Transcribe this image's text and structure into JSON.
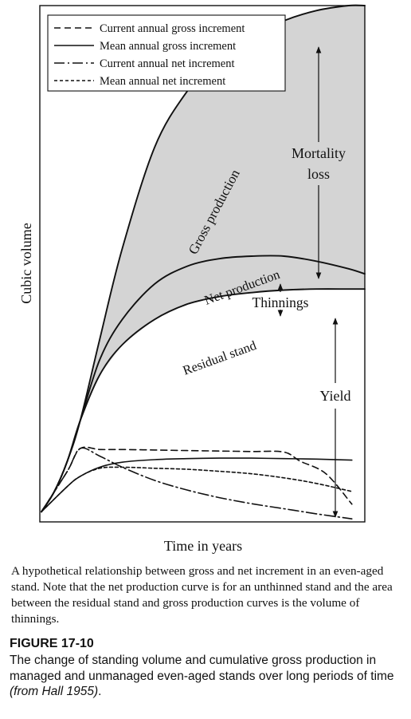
{
  "chart_data": {
    "type": "line",
    "xlabel": "Time in years",
    "ylabel": "Cubic volume",
    "legend": {
      "placement": "top-left",
      "entries": [
        {
          "label": "Current annual gross increment",
          "style": "dashed"
        },
        {
          "label": "Mean annual gross increment",
          "style": "solid"
        },
        {
          "label": "Current annual net increment",
          "style": "dash-dot"
        },
        {
          "label": "Mean annual net increment",
          "style": "dotted"
        }
      ]
    },
    "annotations": {
      "gross_production": "Gross production",
      "net_production": "Net production",
      "residual_stand": "Residual stand",
      "mortality_loss_line1": "Mortality",
      "mortality_loss_line2": "loss",
      "thinnings": "Thinnings",
      "yield": "Yield"
    },
    "series": [
      {
        "name": "Gross production",
        "x": [
          0,
          4,
          8,
          12,
          18,
          25,
          35,
          45,
          55,
          65,
          75,
          85,
          95,
          100
        ],
        "y": [
          0,
          4,
          10,
          18,
          34,
          52,
          72,
          83,
          90,
          94,
          97,
          99,
          100,
          100
        ]
      },
      {
        "name": "Net production",
        "x": [
          0,
          4,
          8,
          12,
          18,
          25,
          35,
          45,
          55,
          65,
          75,
          85,
          95,
          100
        ],
        "y": [
          0,
          4,
          10,
          18,
          30,
          38,
          45,
          48.5,
          50,
          50.5,
          50.5,
          49.5,
          48,
          47
        ]
      },
      {
        "name": "Residual stand",
        "x": [
          0,
          4,
          8,
          12,
          18,
          25,
          35,
          45,
          55,
          65,
          75,
          85,
          95,
          100
        ],
        "y": [
          0,
          4,
          10,
          18,
          27,
          33,
          38,
          41,
          42.5,
          43.3,
          43.8,
          44,
          44,
          44
        ]
      },
      {
        "name": "Current annual gross increment",
        "x": [
          0,
          8,
          12,
          18,
          25,
          35,
          45,
          55,
          65,
          75,
          80,
          88,
          96
        ],
        "y": [
          0,
          8,
          12.5,
          12.3,
          12.3,
          12.2,
          12.1,
          12,
          11.9,
          11.8,
          10,
          7.5,
          1.5
        ]
      },
      {
        "name": "Mean annual gross increment",
        "x": [
          0,
          8,
          12,
          18,
          25,
          35,
          45,
          55,
          65,
          75,
          85,
          96
        ],
        "y": [
          0,
          5,
          7,
          8.8,
          9.8,
          10.3,
          10.5,
          10.6,
          10.6,
          10.5,
          10.4,
          10.2
        ]
      },
      {
        "name": "Current annual net increment",
        "x": [
          0,
          8,
          12,
          18,
          25,
          35,
          45,
          55,
          65,
          75,
          85,
          96
        ],
        "y": [
          0,
          8,
          12.5,
          11,
          8.8,
          6.2,
          4.3,
          2.8,
          1.6,
          0.6,
          -0.4,
          -1.4
        ]
      },
      {
        "name": "Mean annual net increment",
        "x": [
          0,
          8,
          12,
          18,
          25,
          35,
          45,
          55,
          65,
          75,
          85,
          96
        ],
        "y": [
          0,
          5,
          7,
          8.6,
          8.8,
          8.6,
          8.4,
          8,
          7.5,
          6.7,
          5.6,
          4
        ]
      }
    ],
    "xlim": [
      0,
      100
    ],
    "ylim": [
      -2,
      100
    ],
    "grid": false,
    "shaded_region": "between Gross production and Residual stand"
  },
  "caption": "A hypothetical relationship between gross and net increment in an even-aged stand. Note that the net production curve is for an unthinned stand and the area between the residual stand and gross production curves is the volume of thinnings.",
  "figure": {
    "label": "FIGURE 17-10",
    "caption_main": "The change of standing volume and cumulative gross production in managed and unmanaged even-aged stands over long periods of time",
    "caption_source": "(from Hall 1955)",
    "caption_end": "."
  }
}
